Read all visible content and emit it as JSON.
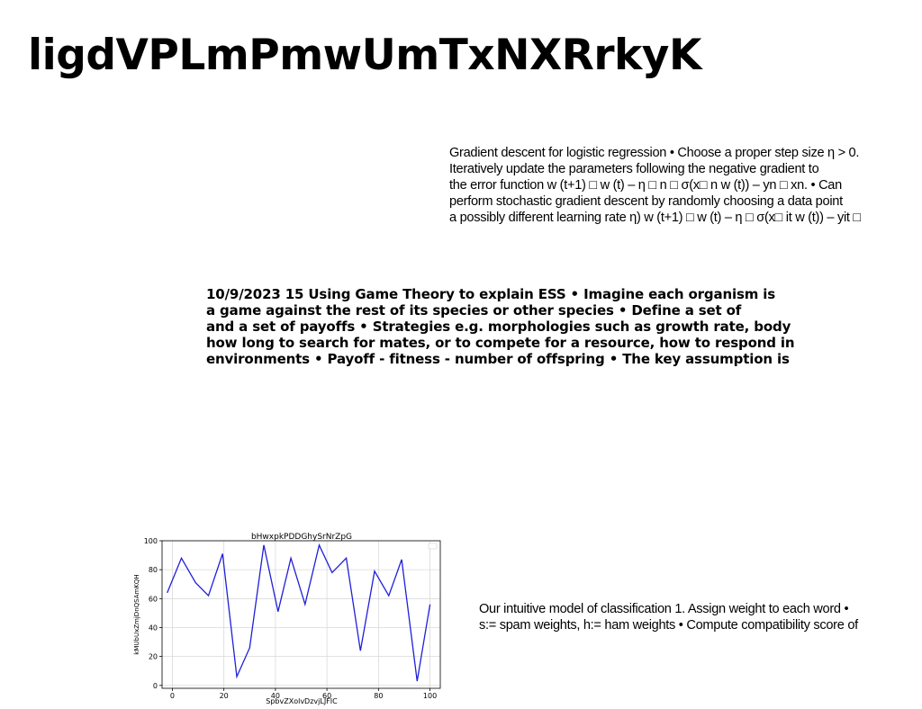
{
  "page": {
    "title": "ligdVPLmPmwUmTxNXRrkyK"
  },
  "blocks": {
    "gradient": [
      "Gradient descent for logistic regression • Choose a proper step size η > 0.",
      "Iteratively update the parameters following the negative gradient to",
      "the error function w (t+1) □ w (t) – η □ n □ σ(x□ n w (t)) – yn □ xn. • Can",
      "perform stochastic gradient descent by randomly choosing a data point",
      "a possibly different learning rate η) w (t+1) □ w (t) – η □ σ(x□ it w (t)) – yit □"
    ],
    "ess": [
      "10/9/2023 15 Using Game Theory to explain ESS • Imagine each organism is",
      "a game against the rest of its species or other species • Define a set of",
      "and a set of payoffs • Strategies e.g. morphologies such as growth rate, body",
      "how long to search for mates, or to compete for a resource, how to respond in",
      "environments • Payoff - fitness - number of offspring • The key assumption is"
    ],
    "classify": [
      "Our intuitive model of classification 1. Assign weight to each word •",
      "s:= spam weights, h:= ham weights • Compute compatibility score of"
    ]
  },
  "chart_data": {
    "type": "line",
    "title": "bHwxpkPDDGhySrNrZpG",
    "xlabel": "SpbvZXolvDzvjLJFIC",
    "ylabel": "kMUbUxZmjDnQSAmKQH",
    "xlim": [
      -4,
      104
    ],
    "ylim": [
      -2,
      100
    ],
    "xticks": [
      0,
      20,
      40,
      60,
      80,
      100
    ],
    "yticks": [
      0,
      20,
      40,
      60,
      80,
      100
    ],
    "grid": true,
    "legend": "top-right",
    "color": "#1f1fd9",
    "series": [
      {
        "x": [
          -2,
          3.5,
          9,
          14,
          19.5,
          25,
          30,
          35.5,
          41,
          46,
          51.5,
          57,
          62,
          67.5,
          73,
          78.5,
          84,
          89,
          95,
          100
        ],
        "y": [
          64,
          88,
          71,
          62,
          91,
          6,
          26,
          97,
          51,
          88,
          56,
          97,
          78,
          88,
          24,
          79,
          62,
          87,
          3,
          56
        ]
      }
    ]
  }
}
